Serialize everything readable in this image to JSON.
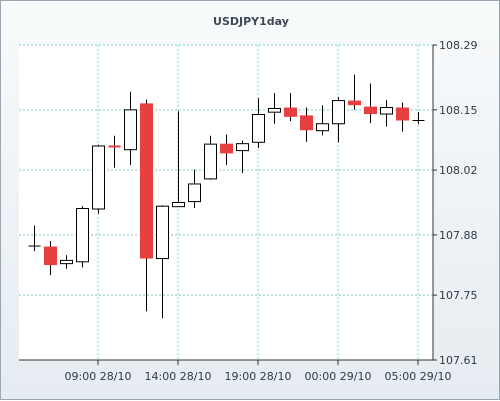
{
  "chart_data": {
    "type": "candlestick",
    "title": "USDJPY1day",
    "ylim": [
      107.61,
      108.29
    ],
    "y_ticks": [
      "108.29",
      "108.15",
      "108.02",
      "107.88",
      "107.75",
      "107.61"
    ],
    "x_ticks": [
      "09:00 28/10",
      "14:00 28/10",
      "19:00 28/10",
      "00:00 29/10",
      "05:00 29/10"
    ],
    "grid": true,
    "colors": {
      "up": "#ffffff",
      "down": "#e84040",
      "border": "#000000",
      "grid": "#7fcfc7"
    },
    "candles": [
      {
        "open": 107.856,
        "high": 107.9,
        "low": 107.845,
        "close": 107.856
      },
      {
        "open": 107.855,
        "high": 107.867,
        "low": 107.793,
        "close": 107.815
      },
      {
        "open": 107.818,
        "high": 107.836,
        "low": 107.807,
        "close": 107.825
      },
      {
        "open": 107.822,
        "high": 107.942,
        "low": 107.81,
        "close": 107.937
      },
      {
        "open": 107.936,
        "high": 108.075,
        "low": 107.926,
        "close": 108.072
      },
      {
        "open": 108.071,
        "high": 108.094,
        "low": 108.025,
        "close": 108.069
      },
      {
        "open": 108.064,
        "high": 108.189,
        "low": 108.031,
        "close": 108.15
      },
      {
        "open": 108.164,
        "high": 108.172,
        "low": 107.715,
        "close": 107.829
      },
      {
        "open": 107.829,
        "high": 107.944,
        "low": 107.7,
        "close": 107.942
      },
      {
        "open": 107.941,
        "high": 108.147,
        "low": 107.941,
        "close": 107.95
      },
      {
        "open": 107.952,
        "high": 108.021,
        "low": 107.938,
        "close": 107.99
      },
      {
        "open": 108.001,
        "high": 108.094,
        "low": 107.999,
        "close": 108.076
      },
      {
        "open": 108.077,
        "high": 108.097,
        "low": 108.031,
        "close": 108.056
      },
      {
        "open": 108.062,
        "high": 108.084,
        "low": 108.014,
        "close": 108.077
      },
      {
        "open": 108.08,
        "high": 108.175,
        "low": 108.068,
        "close": 108.14
      },
      {
        "open": 108.145,
        "high": 108.186,
        "low": 108.12,
        "close": 108.153
      },
      {
        "open": 108.155,
        "high": 108.186,
        "low": 108.126,
        "close": 108.135
      },
      {
        "open": 108.138,
        "high": 108.155,
        "low": 108.081,
        "close": 108.106
      },
      {
        "open": 108.105,
        "high": 108.16,
        "low": 108.095,
        "close": 108.12
      },
      {
        "open": 108.12,
        "high": 108.178,
        "low": 108.08,
        "close": 108.17
      },
      {
        "open": 108.17,
        "high": 108.226,
        "low": 108.15,
        "close": 108.16
      },
      {
        "open": 108.157,
        "high": 108.207,
        "low": 108.121,
        "close": 108.141
      },
      {
        "open": 108.141,
        "high": 108.171,
        "low": 108.114,
        "close": 108.155
      },
      {
        "open": 108.155,
        "high": 108.166,
        "low": 108.103,
        "close": 108.127
      },
      {
        "open": 108.127,
        "high": 108.145,
        "low": 108.119,
        "close": 108.127
      }
    ]
  }
}
